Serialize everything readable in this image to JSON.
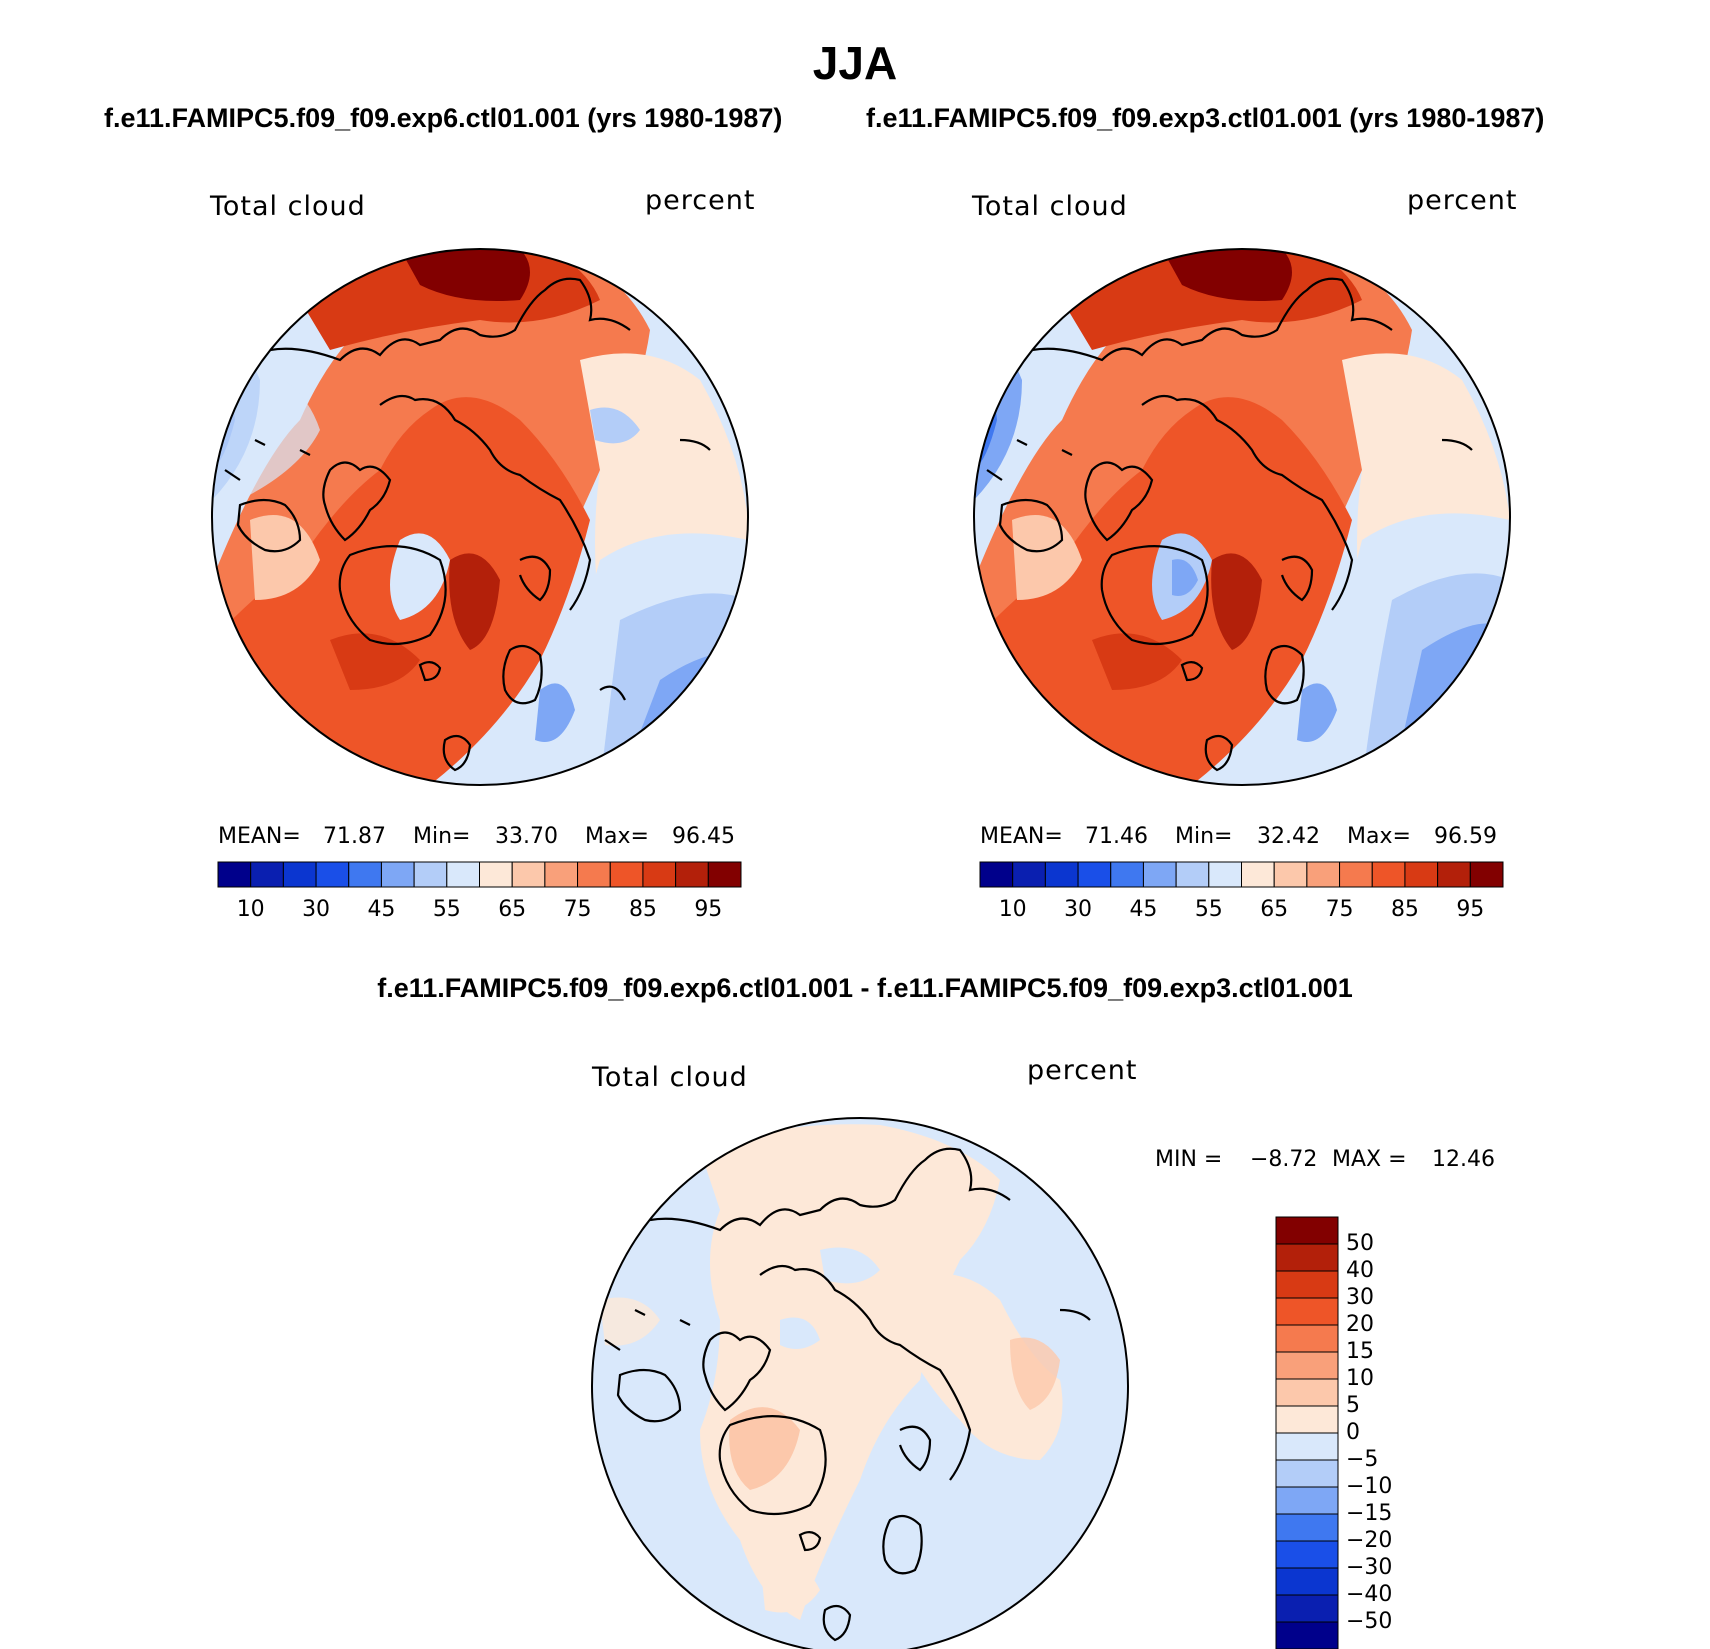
{
  "figure": {
    "title": "JJA",
    "panels": [
      {
        "name": "exp6",
        "case_title": "f.e11.FAMIPC5.f09_f09.exp6.ctl01.001 (yrs 1980-1987)",
        "variable": "Total cloud",
        "units": "percent",
        "stats": {
          "mean_label": "MEAN=",
          "mean": "71.87",
          "min_label": "Min=",
          "min": "33.70",
          "max_label": "Max=",
          "max": "96.45"
        }
      },
      {
        "name": "exp3",
        "case_title": "f.e11.FAMIPC5.f09_f09.exp3.ctl01.001 (yrs 1980-1987)",
        "variable": "Total cloud",
        "units": "percent",
        "stats": {
          "mean_label": "MEAN=",
          "mean": "71.46",
          "min_label": "Min=",
          "min": "32.42",
          "max_label": "Max=",
          "max": "96.59"
        }
      }
    ],
    "diff": {
      "title": "f.e11.FAMIPC5.f09_f09.exp6.ctl01.001 - f.e11.FAMIPC5.f09_f09.exp3.ctl01.001",
      "variable": "Total cloud",
      "units": "percent",
      "min_label": "MIN =",
      "min": "−8.72",
      "max_label": "MAX =",
      "max": "12.46"
    },
    "colorbar_main": {
      "ticks": [
        "10",
        "30",
        "45",
        "55",
        "65",
        "75",
        "85",
        "95"
      ],
      "colors": [
        "#00008b",
        "#0a1fb0",
        "#0b36d0",
        "#1a4fe8",
        "#3f78f0",
        "#7ea7f5",
        "#b3cdf8",
        "#d9e8fb",
        "#fde8d8",
        "#fcc8ab",
        "#f9a07a",
        "#f57a4e",
        "#ee5528",
        "#d83a14",
        "#b3200a",
        "#820000"
      ]
    },
    "colorbar_diff": {
      "ticks": [
        "50",
        "40",
        "30",
        "20",
        "15",
        "10",
        "5",
        "0",
        "−5",
        "−10",
        "−15",
        "−20",
        "−30",
        "−40",
        "−50"
      ],
      "colors": [
        "#820000",
        "#b3200a",
        "#d83a14",
        "#ee5528",
        "#f57a4e",
        "#f9a07a",
        "#fcc8ab",
        "#fde8d8",
        "#d9e8fb",
        "#b3cdf8",
        "#7ea7f5",
        "#3f78f0",
        "#1a4fe8",
        "#0b36d0",
        "#0a1fb0",
        "#00008b"
      ]
    },
    "map_palette": {
      "land_outline": "#000000",
      "circle_outline": "#000000"
    }
  }
}
